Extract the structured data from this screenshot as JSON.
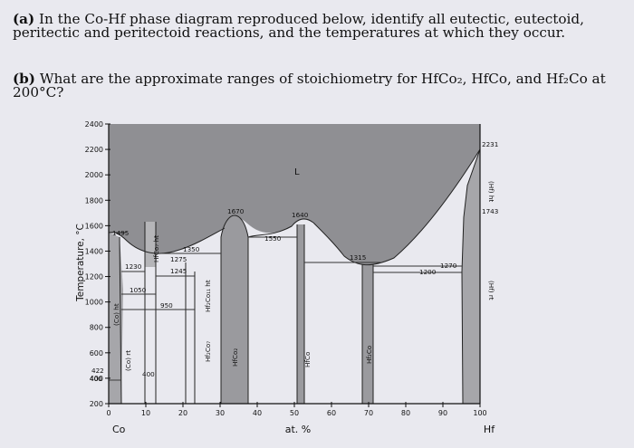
{
  "question": {
    "part_a_label": "(a)",
    "part_a_text": "In the Co-Hf phase diagram reproduced below, identify all eutectic, eutectoid, peritectic and peritectoid reactions, and the temperatures at which they occur.",
    "part_b_label": "(b)",
    "part_b_text": "What are the approximate ranges of stoichiometry for HfCo₂, HfCo, and Hf₂Co at 200°C?"
  },
  "chart_data": {
    "type": "phase-diagram",
    "title": "",
    "xlabel": "at. %",
    "ylabel": "Temperature, °C",
    "x_ticks": [
      "0",
      "10",
      "20",
      "30",
      "40",
      "50",
      "60",
      "70",
      "80",
      "90",
      "100"
    ],
    "y_ticks": [
      "200",
      "400",
      "600",
      "800",
      "1000",
      "1200",
      "1400",
      "1600",
      "1800",
      "2000",
      "2200",
      "2400"
    ],
    "xlim": [
      0,
      100
    ],
    "ylim": [
      200,
      2400
    ],
    "x_end_labels": {
      "left": "Co",
      "right": "Hf"
    },
    "melting_points": [
      {
        "x": 0,
        "temp": 1495,
        "label": "1495"
      },
      {
        "x": 100,
        "temp": 2231,
        "label": "2231"
      }
    ],
    "invariant_temperatures": [
      {
        "label": "1230",
        "x": 9,
        "temp": 1230
      },
      {
        "label": "1350",
        "x": 21,
        "temp": 1350
      },
      {
        "label": "1275",
        "x": 18,
        "temp": 1275
      },
      {
        "label": "1245",
        "x": 18,
        "temp": 1245
      },
      {
        "label": "1050",
        "x": 5,
        "temp": 1050
      },
      {
        "label": "950",
        "x": 11,
        "temp": 950
      },
      {
        "label": "1670",
        "x": 31,
        "temp": 1670
      },
      {
        "label": "1640",
        "x": 50,
        "temp": 1640
      },
      {
        "label": "1550",
        "x": 43,
        "temp": 1550
      },
      {
        "label": "1315",
        "x": 66.7,
        "temp": 1315
      },
      {
        "label": "1270",
        "x": 88,
        "temp": 1270
      },
      {
        "label": "1200",
        "x": 82,
        "temp": 1200
      },
      {
        "label": "1743",
        "x": 100,
        "temp": 1743
      },
      {
        "label": "422",
        "x": 0,
        "temp": 422
      },
      {
        "label": "400",
        "x": 0,
        "temp": 400
      },
      {
        "label": "400",
        "x": 6,
        "temp": 400
      }
    ],
    "phase_labels": [
      "L",
      "(Co) rt",
      "(Co) ht",
      "HfCo₇ ht",
      "Hf₂Co₇",
      "Hf₂Co₁₁ ht",
      "HfCo₂",
      "HfCo",
      "Hf₂Co",
      "(Hf) ht",
      "(Hf) rt"
    ],
    "compounds": [
      {
        "name": "Hf₂Co₇",
        "x": 22.2
      },
      {
        "name": "HfCo₂",
        "x": 33.3
      },
      {
        "name": "HfCo",
        "x": 50
      },
      {
        "name": "Hf₂Co",
        "x": 66.7
      }
    ]
  }
}
